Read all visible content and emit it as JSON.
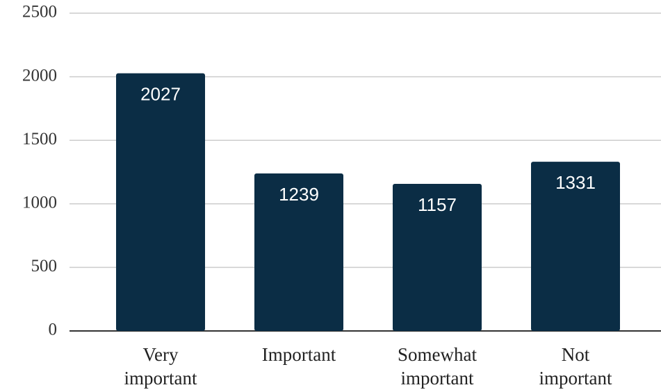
{
  "chart_data": {
    "type": "bar",
    "categories": [
      "Very important",
      "Important",
      "Somewhat important",
      "Not important"
    ],
    "values": [
      2027,
      1239,
      1157,
      1331
    ],
    "color": "#0b2d45",
    "ylim": [
      0,
      2500
    ],
    "yticks": [
      0,
      500,
      1000,
      1500,
      2000,
      2500
    ],
    "grid": true
  }
}
